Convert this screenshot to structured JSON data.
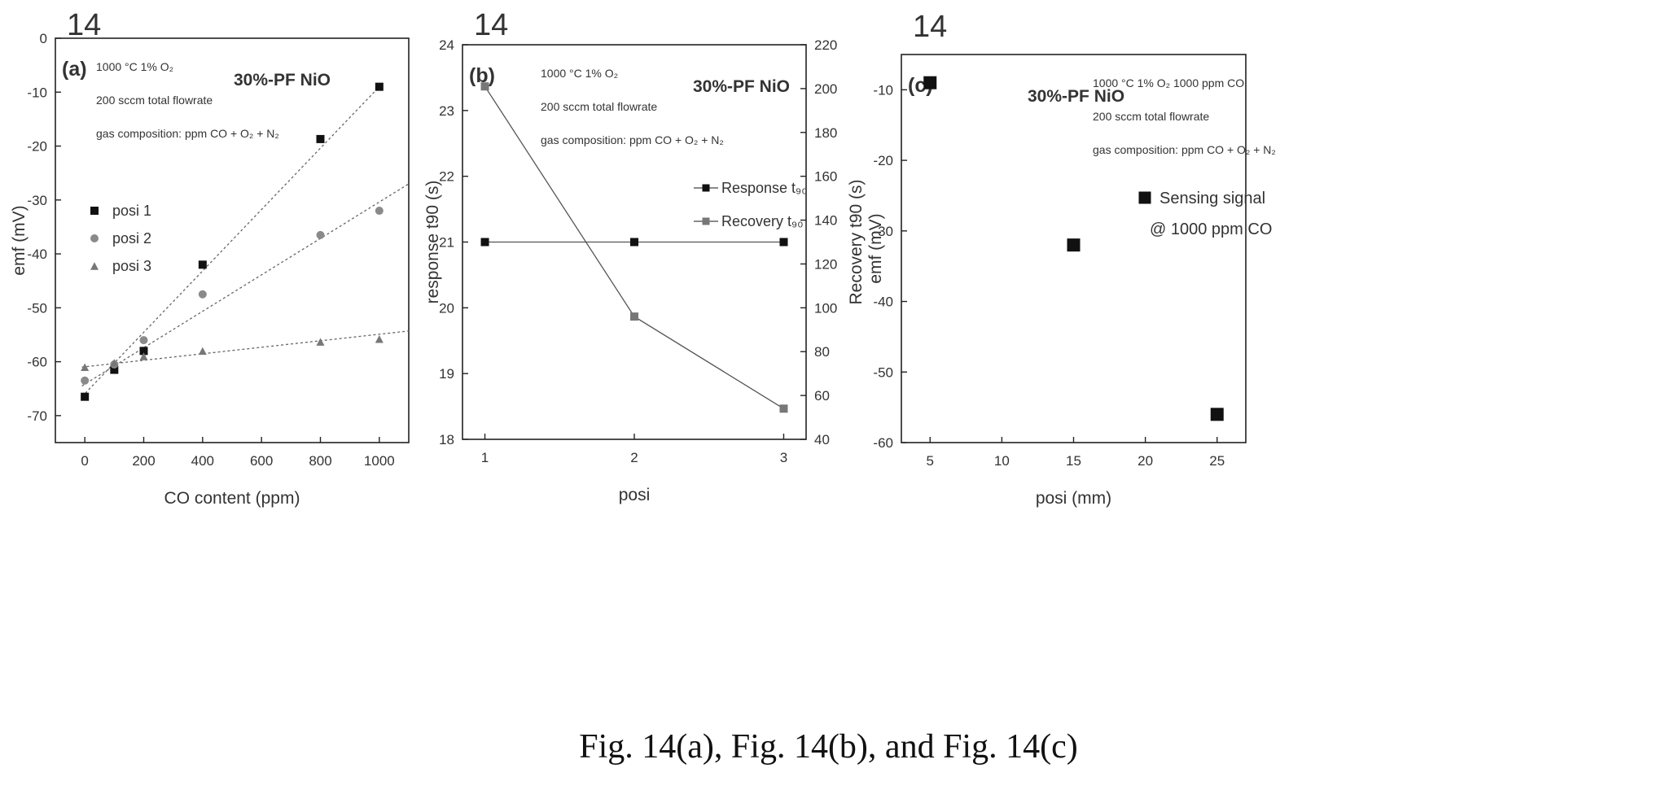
{
  "caption": "Fig. 14(a), Fig. 14(b), and Fig. 14(c)",
  "colors": {
    "ink": "#222222",
    "marker_dark": "#111111",
    "marker_grey": "#888888",
    "fit_line": "#666666"
  },
  "chart_data": [
    {
      "type": "scatter",
      "figure_number": "14",
      "panel_label": "(a)",
      "annotation_lines": [
        "1000 °C  1% O₂",
        "200 sccm total flowrate",
        "gas composition: ppm CO + O₂ + N₂"
      ],
      "material_label": "30%-PF NiO",
      "xlabel": "CO content (ppm)",
      "ylabel": "emf (mV)",
      "xlim": [
        -100,
        1100
      ],
      "ylim": [
        -75,
        0
      ],
      "x_ticks": [
        0,
        200,
        400,
        600,
        800,
        1000
      ],
      "y_ticks": [
        0,
        -10,
        -20,
        -30,
        -40,
        -50,
        -60,
        -70
      ],
      "legend_position": "upper-left",
      "series": [
        {
          "name": "posi 1",
          "marker": "square",
          "color": "#111111",
          "x": [
            0,
            100,
            200,
            400,
            800,
            1000
          ],
          "y": [
            -66.5,
            -61.5,
            -58,
            -42,
            -18.7,
            -9
          ],
          "fit": [
            [
              -10,
              -66.5
            ],
            [
              1000,
              -9
            ]
          ]
        },
        {
          "name": "posi 2",
          "marker": "circle",
          "color": "#8a8a8a",
          "x": [
            0,
            100,
            200,
            400,
            800,
            1000
          ],
          "y": [
            -63.5,
            -60.5,
            -56,
            -47.5,
            -36.5,
            -32
          ],
          "fit": [
            [
              -10,
              -64.5
            ],
            [
              1100,
              -27
            ]
          ]
        },
        {
          "name": "posi 3",
          "marker": "triangle",
          "color": "#777777",
          "x": [
            0,
            100,
            200,
            400,
            800,
            1000
          ],
          "y": [
            -61,
            -60.2,
            -59,
            -58,
            -56.3,
            -55.8
          ],
          "fit": [
            [
              -10,
              -61
            ],
            [
              1100,
              -54.3
            ]
          ]
        }
      ]
    },
    {
      "type": "line",
      "figure_number": "14",
      "panel_label": "(b)",
      "annotation_lines": [
        "1000 °C  1% O₂",
        "200 sccm total flowrate",
        "gas composition: ppm CO + O₂ + N₂"
      ],
      "material_label": "30%-PF NiO",
      "xlabel": "posi",
      "ylabel": "response t90 (s)",
      "ylabel_right": "Recovery t90 (s)",
      "xlim": [
        0.85,
        3.15
      ],
      "ylim": [
        18,
        24
      ],
      "ylim_right": [
        40,
        220
      ],
      "x_ticks": [
        1,
        2,
        3
      ],
      "y_ticks": [
        18,
        19,
        20,
        21,
        22,
        23,
        24
      ],
      "y_ticks_right": [
        40,
        60,
        80,
        100,
        120,
        140,
        160,
        180,
        200,
        220
      ],
      "legend_position": "right",
      "series": [
        {
          "name": "Response t₉₀",
          "axis": "left",
          "marker": "square",
          "color": "#111111",
          "x": [
            1,
            2,
            3
          ],
          "y": [
            21,
            21,
            21
          ]
        },
        {
          "name": "Recovery t₉₀",
          "axis": "right",
          "marker": "square",
          "color": "#777777",
          "x": [
            1,
            2,
            3
          ],
          "y": [
            201,
            96,
            54
          ]
        }
      ]
    },
    {
      "type": "scatter",
      "figure_number": "14",
      "panel_label": "(c)",
      "annotation_lines": [
        "1000 °C  1% O₂  1000 ppm CO",
        "200 sccm total flowrate",
        "gas composition: ppm CO + O₂ + N₂"
      ],
      "material_label": "30%-PF NiO",
      "xlabel": "posi (mm)",
      "ylabel": "emf (mV)",
      "xlim": [
        3,
        27
      ],
      "ylim": [
        -60,
        -5
      ],
      "x_ticks": [
        5,
        10,
        15,
        20,
        25
      ],
      "y_ticks": [
        -10,
        -20,
        -30,
        -40,
        -50,
        -60
      ],
      "legend_position": "upper-right",
      "legend_lines": [
        "Sensing signal",
        "@ 1000 ppm CO"
      ],
      "series": [
        {
          "name": "Sensing signal @ 1000 ppm CO",
          "marker": "square",
          "color": "#111111",
          "x": [
            5,
            15,
            25
          ],
          "y": [
            -9,
            -32,
            -56
          ]
        }
      ]
    }
  ]
}
